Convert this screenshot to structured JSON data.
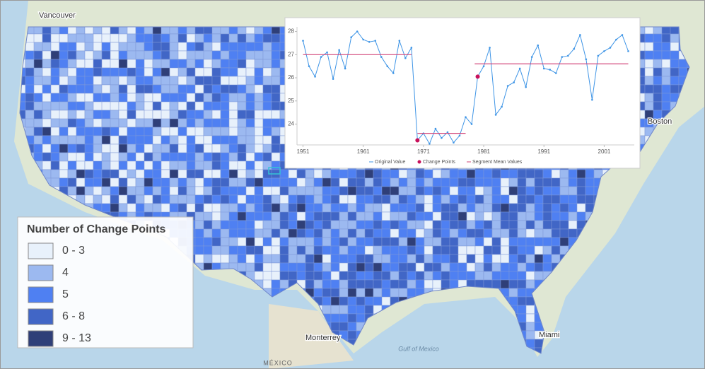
{
  "map": {
    "labels": [
      {
        "text": "Vancouver"
      },
      {
        "text": "Boston"
      },
      {
        "text": "Miami"
      },
      {
        "text": "Monterrey"
      },
      {
        "text": "Gulf of Mexico"
      },
      {
        "text": "MÉXICO"
      }
    ]
  },
  "legend": {
    "title": "Number of Change Points",
    "items": [
      {
        "label": "0 - 3",
        "color": "#e8f1fb"
      },
      {
        "label": "4",
        "color": "#9cb9f0"
      },
      {
        "label": "5",
        "color": "#4f80f2"
      },
      {
        "label": "6 - 8",
        "color": "#4166c6"
      },
      {
        "label": "9 - 13",
        "color": "#2f3f78"
      }
    ]
  },
  "chart_data": {
    "type": "line",
    "x": [
      1951,
      1952,
      1953,
      1954,
      1955,
      1956,
      1957,
      1958,
      1959,
      1960,
      1961,
      1962,
      1963,
      1964,
      1965,
      1966,
      1967,
      1968,
      1969,
      1970,
      1971,
      1972,
      1973,
      1974,
      1975,
      1976,
      1977,
      1978,
      1979,
      1980,
      1981,
      1982,
      1983,
      1984,
      1985,
      1986,
      1987,
      1988,
      1989,
      1990,
      1991,
      1992,
      1993,
      1994,
      1995,
      1996,
      1997,
      1998,
      1999,
      2000,
      2001,
      2002,
      2003,
      2004,
      2005
    ],
    "series": [
      {
        "name": "Original Value",
        "color": "#3f95e6",
        "values": [
          27.6,
          26.5,
          26.05,
          26.9,
          27.1,
          25.95,
          27.2,
          26.4,
          27.75,
          28.0,
          27.65,
          27.55,
          27.6,
          26.9,
          26.5,
          26.2,
          27.6,
          26.85,
          27.3,
          23.3,
          23.6,
          23.15,
          23.8,
          23.4,
          23.65,
          23.2,
          23.5,
          24.3,
          24.0,
          26.05,
          26.5,
          27.3,
          24.4,
          24.75,
          25.65,
          25.8,
          26.4,
          25.6,
          26.9,
          27.4,
          26.4,
          26.35,
          26.2,
          26.9,
          26.95,
          27.25,
          27.85,
          26.8,
          25.05,
          26.95,
          27.15,
          27.3,
          27.65,
          27.85,
          27.15
        ]
      },
      {
        "name": "Change Points",
        "color": "#c8105a",
        "x": [
          1970,
          1980
        ],
        "values": [
          23.3,
          26.05
        ]
      },
      {
        "name": "Segment Mean Values",
        "color": "#d2477a",
        "segments": [
          {
            "x": [
              1951,
              1969
            ],
            "value": 27.0
          },
          {
            "x": [
              1970,
              1978
            ],
            "value": 23.6
          },
          {
            "x": [
              1979.5,
              2005
            ],
            "value": 26.6
          }
        ]
      }
    ],
    "xlim": [
      1950,
      2006
    ],
    "ylim": [
      23.1,
      28.2
    ],
    "xticks": [
      1951,
      1961,
      1971,
      1981,
      1991,
      2001
    ],
    "yticks": [
      24,
      25,
      26,
      27,
      28
    ],
    "grid": false
  }
}
